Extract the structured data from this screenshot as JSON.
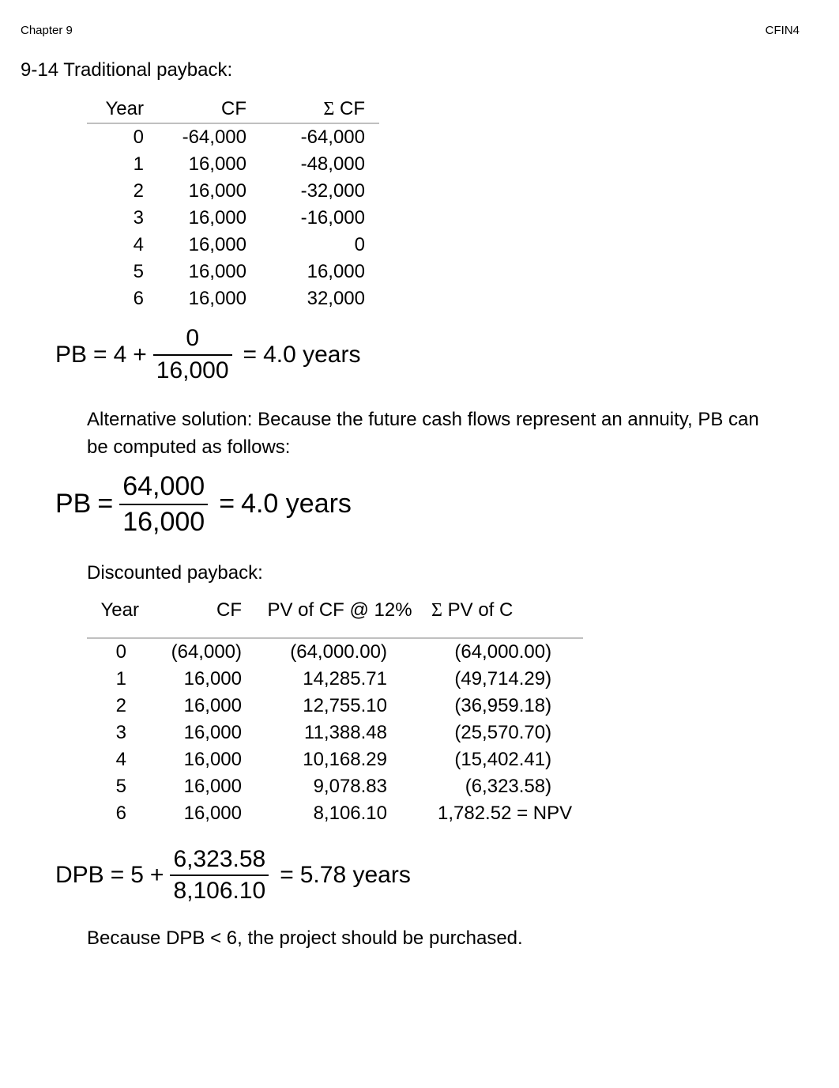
{
  "header": {
    "left": "Chapter 9",
    "right": "CFIN4"
  },
  "section": {
    "number": "9-14",
    "title": "Traditional payback:"
  },
  "cf_table": {
    "headers": {
      "year": "Year",
      "cf": "CF",
      "sum": "Σ CF"
    },
    "rows": [
      {
        "year": "0",
        "cf": "-64,000",
        "sum": "-64,000"
      },
      {
        "year": "1",
        "cf": "16,000",
        "sum": "-48,000"
      },
      {
        "year": "2",
        "cf": "16,000",
        "sum": "-32,000"
      },
      {
        "year": "3",
        "cf": "16,000",
        "sum": "-16,000"
      },
      {
        "year": "4",
        "cf": "16,000",
        "sum": "0"
      },
      {
        "year": "5",
        "cf": "16,000",
        "sum": "16,000"
      },
      {
        "year": "6",
        "cf": "16,000",
        "sum": "32,000"
      }
    ]
  },
  "pb_formula": {
    "lhs": "PB",
    "eq1": "=",
    "base": "4",
    "plus": "+",
    "num": "0",
    "den": "16,000",
    "eq2": "=",
    "result": "4.0 years"
  },
  "alt_text": "Alternative solution: Because the future cash flows represent an annuity, PB can be computed as follows:",
  "pb_alt_formula": {
    "lhs": "PB",
    "eq1": "=",
    "num": "64,000",
    "den": "16,000",
    "eq2": "=",
    "result": "4.0 years"
  },
  "dpb_title": "Discounted payback:",
  "dpb_table": {
    "headers": {
      "year": "Year",
      "cf": "CF",
      "pv": "PV of CF @ 12%",
      "sumpv": "Σ PV of C"
    },
    "rows": [
      {
        "year": "0",
        "cf": "(64,000)",
        "pv": "(64,000.00)",
        "sum": "(64,000.00)"
      },
      {
        "year": "1",
        "cf": "16,000",
        "pv": "14,285.71",
        "sum": "(49,714.29)"
      },
      {
        "year": "2",
        "cf": "16,000",
        "pv": "12,755.10",
        "sum": "(36,959.18)"
      },
      {
        "year": "3",
        "cf": "16,000",
        "pv": "11,388.48",
        "sum": "(25,570.70)"
      },
      {
        "year": "4",
        "cf": "16,000",
        "pv": "10,168.29",
        "sum": "(15,402.41)"
      },
      {
        "year": "5",
        "cf": "16,000",
        "pv": "9,078.83",
        "sum": "(6,323.58)"
      },
      {
        "year": "6",
        "cf": "16,000",
        "pv": "8,106.10",
        "sum": "1,782.52 = NPV"
      }
    ]
  },
  "dpb_formula": {
    "lhs": "DPB",
    "eq1": "=",
    "base": "5",
    "plus": "+",
    "num": "6,323.58",
    "den": "8,106.10",
    "eq2": "=",
    "result": "5.78 years"
  },
  "conclusion": "Because DPB < 6, the project should be purchased."
}
